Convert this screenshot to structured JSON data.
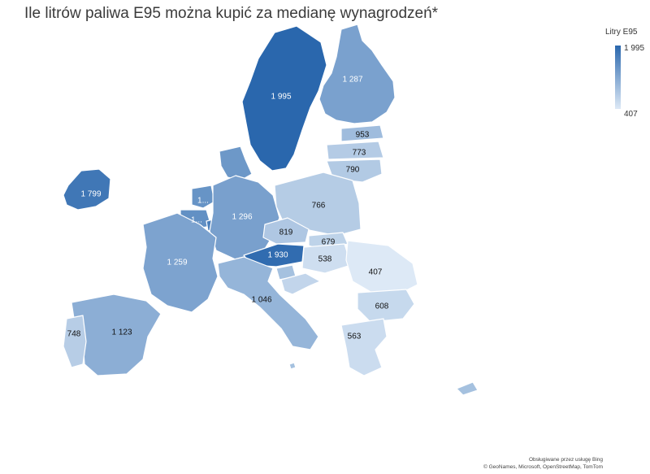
{
  "title": "Ile litrów paliwa E95 można kupić za medianę wynagrodzeń*",
  "legend": {
    "title": "Litry E95",
    "max": "1 995",
    "min": "407",
    "max_value": 1995,
    "min_value": 407
  },
  "colors": {
    "high": "#2a67ad",
    "low": "#dde9f6",
    "label_dark": "#111111",
    "label_light": "#ffffff"
  },
  "attribution": {
    "line1": "Obsługiwane przez usługę Bing",
    "line2": "© GeoNames, Microsoft, OpenStreetMap, TomTom"
  },
  "map_data": {
    "type": "choropleth",
    "metric": "Litry E95",
    "regions": [
      {
        "name": "Sweden",
        "value": 1995,
        "label": "1 995"
      },
      {
        "name": "Finland",
        "value": 1287,
        "label": "1 287"
      },
      {
        "name": "Estonia",
        "value": 953,
        "label": "953"
      },
      {
        "name": "Latvia",
        "value": 773,
        "label": "773"
      },
      {
        "name": "Lithuania",
        "value": 790,
        "label": "790"
      },
      {
        "name": "Ireland",
        "value": 1799,
        "label": "1 799"
      },
      {
        "name": "Denmark",
        "value": 1400,
        "label": ""
      },
      {
        "name": "Netherlands",
        "value": 1450,
        "label": "1..."
      },
      {
        "name": "Belgium",
        "value": 1500,
        "label": "1..."
      },
      {
        "name": "Luxembourg",
        "value": 1700,
        "label": ""
      },
      {
        "name": "Germany",
        "value": 1296,
        "label": "1 296"
      },
      {
        "name": "Poland",
        "value": 766,
        "label": "766"
      },
      {
        "name": "Czechia",
        "value": 819,
        "label": "819"
      },
      {
        "name": "Slovakia",
        "value": 679,
        "label": "679"
      },
      {
        "name": "Austria",
        "value": 1930,
        "label": "1 930"
      },
      {
        "name": "Hungary",
        "value": 538,
        "label": "538"
      },
      {
        "name": "Romania",
        "value": 407,
        "label": "407"
      },
      {
        "name": "Bulgaria",
        "value": 608,
        "label": "608"
      },
      {
        "name": "Greece",
        "value": 563,
        "label": "563"
      },
      {
        "name": "France",
        "value": 1259,
        "label": "1 259"
      },
      {
        "name": "Italy",
        "value": 1046,
        "label": "1 046"
      },
      {
        "name": "Spain",
        "value": 1123,
        "label": "1 123"
      },
      {
        "name": "Portugal",
        "value": 748,
        "label": "748"
      },
      {
        "name": "Slovenia",
        "value": 900,
        "label": ""
      },
      {
        "name": "Croatia",
        "value": 650,
        "label": ""
      },
      {
        "name": "Cyprus",
        "value": 900,
        "label": ""
      },
      {
        "name": "Malta",
        "value": 900,
        "label": ""
      }
    ]
  }
}
